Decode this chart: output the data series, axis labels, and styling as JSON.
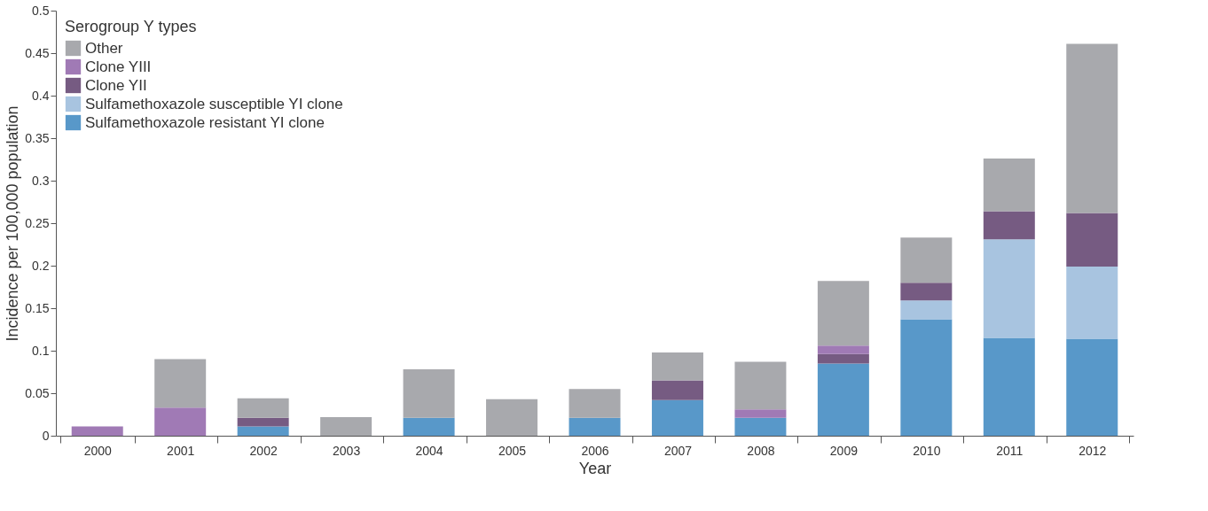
{
  "chart_data": {
    "type": "bar",
    "stacked": true,
    "xlabel": "Year",
    "ylabel": "Incidence per 100,000 population",
    "legend_title": "Serogroup Y types",
    "legend": "top left",
    "grid": false,
    "categories": [
      "2000",
      "2001",
      "2002",
      "2003",
      "2004",
      "2005",
      "2006",
      "2007",
      "2008",
      "2009",
      "2010",
      "2011",
      "2012"
    ],
    "ylim": [
      0,
      0.5
    ],
    "yticks": [
      0,
      0.05,
      0.1,
      0.15,
      0.2,
      0.25,
      0.3,
      0.35,
      0.4,
      0.45,
      0.5
    ],
    "series": [
      {
        "name": "Sulfamethoxazole resistant YI clone",
        "color": "#5898c9",
        "values": [
          null,
          null,
          0.011,
          null,
          0.021,
          null,
          0.021,
          0.042,
          0.021,
          0.085,
          0.137,
          0.115,
          0.114
        ]
      },
      {
        "name": "Sulfamethoxazole susceptible YI clone",
        "color": "#a8c4e0",
        "values": [
          null,
          null,
          null,
          null,
          null,
          null,
          null,
          null,
          null,
          null,
          0.022,
          0.116,
          0.085
        ]
      },
      {
        "name": "Clone YII",
        "color": "#765b82",
        "values": [
          null,
          null,
          0.01,
          null,
          null,
          null,
          null,
          0.023,
          null,
          0.011,
          0.021,
          0.033,
          0.063
        ]
      },
      {
        "name": "Clone YIII",
        "color": "#a07ab5",
        "values": [
          0.011,
          0.033,
          null,
          null,
          null,
          null,
          null,
          null,
          0.01,
          0.01,
          null,
          null,
          null
        ]
      },
      {
        "name": "Other",
        "color": "#a8a9ad",
        "values": [
          null,
          0.057,
          0.023,
          0.022,
          0.057,
          0.043,
          0.034,
          0.033,
          0.056,
          0.076,
          0.053,
          0.062,
          0.199
        ]
      }
    ]
  }
}
